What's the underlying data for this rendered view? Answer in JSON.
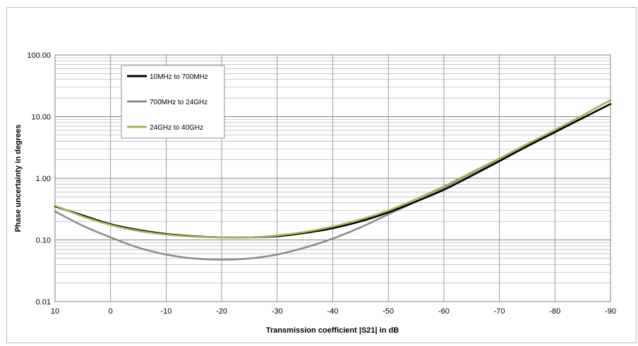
{
  "chart_data": {
    "type": "line",
    "xlabel": "Transmission coefficient |S21| in dB",
    "ylabel": "Phase uncertainty in degrees",
    "xlim": [
      10,
      -90
    ],
    "ylim": [
      0.01,
      100
    ],
    "y_scale": "log",
    "grid": true,
    "legend_position": "top-left",
    "x_ticks": [
      "10",
      "0",
      "-10",
      "-20",
      "-30",
      "-40",
      "-50",
      "-60",
      "-70",
      "-80",
      "-90"
    ],
    "y_ticks": [
      "0.01",
      "0.10",
      "1.00",
      "10.00",
      "100.00"
    ],
    "series": [
      {
        "name": "10MHz to 700MHz",
        "color": "#000000",
        "x": [
          10,
          5,
          0,
          -5,
          -10,
          -15,
          -20,
          -25,
          -30,
          -35,
          -40,
          -45,
          -50,
          -55,
          -60,
          -65,
          -70,
          -75,
          -80,
          -85,
          -90
        ],
        "y": [
          0.35,
          0.25,
          0.18,
          0.145,
          0.125,
          0.115,
          0.11,
          0.11,
          0.115,
          0.13,
          0.155,
          0.2,
          0.28,
          0.42,
          0.65,
          1.1,
          1.9,
          3.3,
          5.6,
          9.5,
          16.0
        ]
      },
      {
        "name": "700MHz to 24GHz",
        "color": "#8c8c8c",
        "x": [
          10,
          5,
          0,
          -5,
          -10,
          -15,
          -20,
          -25,
          -30,
          -35,
          -40,
          -45,
          -50,
          -55,
          -60,
          -65,
          -70,
          -75,
          -80,
          -85,
          -90
        ],
        "y": [
          0.29,
          0.17,
          0.11,
          0.075,
          0.058,
          0.05,
          0.048,
          0.05,
          0.058,
          0.075,
          0.105,
          0.16,
          0.26,
          0.42,
          0.7,
          1.2,
          2.0,
          3.5,
          6.0,
          10.5,
          18.5
        ]
      },
      {
        "name": "24GHz to 40GHz",
        "color": "#9bbb59",
        "x": [
          10,
          5,
          0,
          -5,
          -10,
          -15,
          -20,
          -25,
          -30,
          -35,
          -40,
          -45,
          -50,
          -55,
          -60,
          -65,
          -70,
          -75,
          -80,
          -85,
          -90
        ],
        "y": [
          0.36,
          0.24,
          0.175,
          0.14,
          0.122,
          0.113,
          0.11,
          0.11,
          0.118,
          0.135,
          0.165,
          0.215,
          0.3,
          0.46,
          0.74,
          1.25,
          2.1,
          3.6,
          6.1,
          10.5,
          18.5
        ]
      }
    ]
  }
}
